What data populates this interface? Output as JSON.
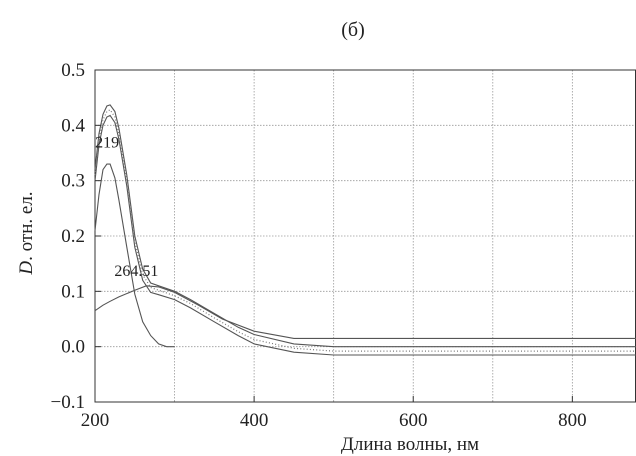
{
  "panel_label": "(б)",
  "chart_data": {
    "type": "line",
    "xlabel": "Длина волны, нм",
    "ylabel_italic": "D",
    "ylabel_rest": ". отн. ел.",
    "xlim": [
      200,
      880
    ],
    "ylim": [
      -0.1,
      0.5
    ],
    "xticks": [
      200,
      400,
      600,
      800
    ],
    "xtick_labels": [
      "200",
      "400",
      "600",
      "800"
    ],
    "yticks": [
      -0.1,
      0.0,
      0.1,
      0.2,
      0.3,
      0.4,
      0.5
    ],
    "ytick_labels": [
      "−0.1",
      "0.0",
      "0.1",
      "0.2",
      "0.3",
      "0.4",
      "0.5"
    ],
    "xgrid": [
      200,
      300,
      400,
      500,
      600,
      700,
      800
    ],
    "ygrid": [
      0.0,
      0.1,
      0.2,
      0.3,
      0.4
    ],
    "grid": true,
    "annotations": [
      {
        "text": "219",
        "x": 219,
        "y": 0.335
      },
      {
        "text": "264.51",
        "x": 264.51,
        "y": 0.11
      }
    ],
    "series": [
      {
        "style": "solid",
        "x": [
          200,
          205,
          210,
          215,
          219,
          225,
          230,
          240,
          250,
          260,
          270,
          280,
          290,
          300
        ],
        "y": [
          0.21,
          0.275,
          0.32,
          0.33,
          0.33,
          0.305,
          0.265,
          0.18,
          0.095,
          0.045,
          0.02,
          0.005,
          0.0,
          0.0
        ]
      },
      {
        "style": "solid",
        "x": [
          200,
          210,
          219,
          230,
          250,
          264.51,
          280,
          300,
          330,
          360,
          400,
          450,
          500,
          600,
          700,
          800,
          880
        ],
        "y": [
          0.065,
          0.075,
          0.082,
          0.09,
          0.102,
          0.11,
          0.108,
          0.098,
          0.075,
          0.05,
          0.028,
          0.015,
          0.015,
          0.015,
          0.015,
          0.015,
          0.015
        ]
      },
      {
        "style": "solid",
        "x": [
          200,
          205,
          210,
          215,
          219,
          225,
          230,
          240,
          250,
          260,
          270,
          280,
          300,
          320,
          350,
          380,
          400,
          450,
          500,
          600,
          700,
          800,
          880
        ],
        "y": [
          0.32,
          0.385,
          0.42,
          0.435,
          0.437,
          0.425,
          0.395,
          0.31,
          0.2,
          0.14,
          0.115,
          0.11,
          0.1,
          0.085,
          0.06,
          0.035,
          0.022,
          0.005,
          0.0,
          0.0,
          0.0,
          0.0,
          0.0
        ]
      },
      {
        "style": "solid",
        "x": [
          200,
          205,
          210,
          215,
          219,
          225,
          230,
          240,
          250,
          260,
          270,
          280,
          300,
          320,
          350,
          380,
          400,
          450,
          500,
          600,
          700,
          800,
          880
        ],
        "y": [
          0.3,
          0.365,
          0.4,
          0.415,
          0.418,
          0.405,
          0.375,
          0.29,
          0.18,
          0.12,
          0.098,
          0.094,
          0.085,
          0.07,
          0.045,
          0.02,
          0.005,
          -0.01,
          -0.015,
          -0.015,
          -0.015,
          -0.015,
          -0.015
        ]
      },
      {
        "style": "dotted",
        "x": [
          200,
          205,
          210,
          215,
          219,
          225,
          230,
          240,
          250,
          260,
          270,
          280,
          300,
          320,
          350,
          380,
          400,
          450,
          500,
          600,
          700,
          800,
          880
        ],
        "y": [
          0.31,
          0.375,
          0.41,
          0.425,
          0.428,
          0.415,
          0.385,
          0.3,
          0.19,
          0.13,
          0.107,
          0.102,
          0.092,
          0.078,
          0.052,
          0.027,
          0.013,
          -0.003,
          -0.008,
          -0.008,
          -0.008,
          -0.008,
          -0.008
        ]
      }
    ]
  }
}
